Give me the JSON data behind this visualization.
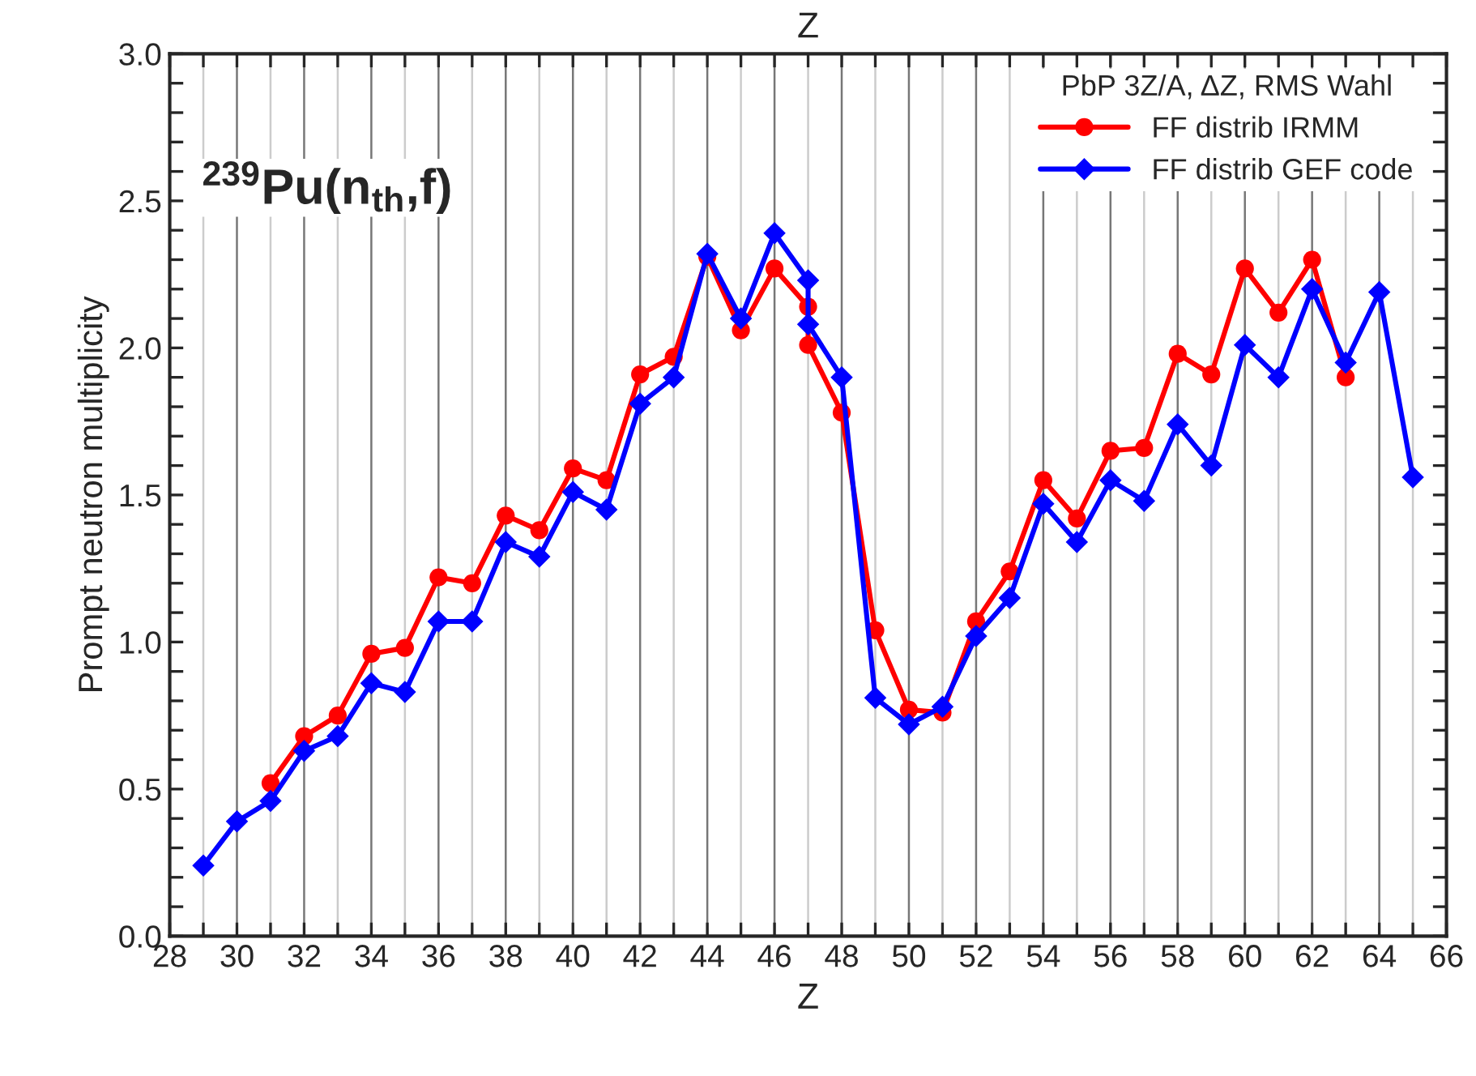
{
  "chart_data": {
    "type": "line",
    "xlabel": "Z",
    "ylabel": "Prompt neutron multiplicity",
    "x2label": "Z",
    "legend_title": "PbP 3Z/A, ΔZ, RMS Wahl",
    "annotations": [
      "$^{239}$Pu(n$_{th}$,f)"
    ],
    "xlim": [
      28,
      66
    ],
    "ylim": [
      0,
      3.0
    ],
    "xticks": [
      28,
      {
        "value": 29,
        "label": null
      },
      30,
      {
        "value": 31,
        "label": null
      },
      32,
      {
        "value": 33,
        "label": null
      },
      34,
      {
        "value": 35,
        "label": null
      },
      36,
      {
        "value": 37,
        "label": null
      },
      38,
      {
        "value": 39,
        "label": null
      },
      40,
      {
        "value": 41,
        "label": null
      },
      42,
      {
        "value": 43,
        "label": null
      },
      44,
      {
        "value": 45,
        "label": null
      },
      46,
      {
        "value": 47,
        "label": null
      },
      48,
      {
        "value": 49,
        "label": null
      },
      50,
      {
        "value": 51,
        "label": null
      },
      52,
      {
        "value": 53,
        "label": null
      },
      54,
      {
        "value": 55,
        "label": null
      },
      56,
      {
        "value": 57,
        "label": null
      },
      58,
      {
        "value": 59,
        "label": null
      },
      60,
      {
        "value": 61,
        "label": null
      },
      62,
      {
        "value": 63,
        "label": null
      },
      64,
      {
        "value": 65,
        "label": null
      },
      66
    ],
    "yticks": [
      "0.0",
      {
        "value": 0.1,
        "label": null
      },
      {
        "value": 0.2,
        "label": null
      },
      {
        "value": 0.3,
        "label": null
      },
      {
        "value": 0.4,
        "label": null
      },
      {
        "value": 0.5,
        "label": "0.5"
      },
      {
        "value": 0.6,
        "label": null
      },
      {
        "value": 0.7,
        "label": null
      },
      {
        "value": 0.8,
        "label": null
      },
      {
        "value": 0.9,
        "label": null
      },
      {
        "value": 1.0,
        "label": "1.0"
      },
      {
        "value": 1.1,
        "label": null
      },
      {
        "value": 1.2,
        "label": null
      },
      {
        "value": 1.3,
        "label": null
      },
      {
        "value": 1.4,
        "label": null
      },
      {
        "value": 1.5,
        "label": "1.5"
      },
      {
        "value": 1.6,
        "label": null
      },
      {
        "value": 1.7,
        "label": null
      },
      {
        "value": 1.8,
        "label": null
      },
      {
        "value": 1.9,
        "label": null
      },
      {
        "value": 2.0,
        "label": "2.0"
      },
      {
        "value": 2.1,
        "label": null
      },
      {
        "value": 2.2,
        "label": null
      },
      {
        "value": 2.3,
        "label": null
      },
      {
        "value": 2.4,
        "label": null
      },
      {
        "value": 2.5,
        "label": "2.5"
      },
      {
        "value": 2.6,
        "label": null
      },
      {
        "value": 2.7,
        "label": null
      },
      {
        "value": 2.8,
        "label": null
      },
      {
        "value": 2.9,
        "label": null
      },
      {
        "value": 3.0,
        "label": "3.0"
      }
    ],
    "grid": "x",
    "legend": "top right",
    "line_style": "solid",
    "series": [
      {
        "name": "FF distrib IRMM",
        "color": "#ff0000",
        "marker": "circle",
        "x": [
          31,
          32,
          33,
          34,
          35,
          36,
          37,
          38,
          39,
          40,
          41,
          42,
          43,
          44,
          45,
          46,
          47,
          47,
          48,
          49,
          50,
          51,
          52,
          53,
          54,
          55,
          56,
          57,
          58,
          59,
          60,
          61,
          62,
          63
        ],
        "values": [
          0.52,
          0.68,
          0.75,
          0.96,
          0.98,
          1.22,
          1.2,
          1.43,
          1.38,
          1.59,
          1.55,
          1.91,
          1.97,
          2.31,
          2.06,
          2.27,
          2.14,
          2.01,
          1.78,
          1.04,
          0.77,
          0.76,
          1.07,
          1.24,
          1.55,
          1.42,
          1.65,
          1.66,
          1.98,
          1.91,
          2.27,
          2.12,
          2.3,
          1.9
        ]
      },
      {
        "name": "FF distrib GEF code",
        "color": "#0000ff",
        "marker": "diamond",
        "x": [
          29,
          30,
          31,
          32,
          33,
          34,
          35,
          36,
          37,
          38,
          39,
          40,
          41,
          42,
          43,
          44,
          45,
          46,
          47,
          47,
          48,
          49,
          50,
          51,
          52,
          53,
          54,
          55,
          56,
          57,
          58,
          59,
          60,
          61,
          62,
          63,
          64,
          65
        ],
        "values": [
          0.24,
          0.39,
          0.46,
          0.63,
          0.68,
          0.86,
          0.83,
          1.07,
          1.07,
          1.34,
          1.29,
          1.51,
          1.45,
          1.81,
          1.9,
          2.32,
          2.1,
          2.39,
          2.23,
          2.08,
          1.9,
          0.81,
          0.72,
          0.78,
          1.02,
          1.15,
          1.47,
          1.34,
          1.55,
          1.48,
          1.74,
          1.6,
          2.01,
          1.9,
          2.2,
          1.95,
          2.19,
          1.56
        ]
      }
    ]
  }
}
